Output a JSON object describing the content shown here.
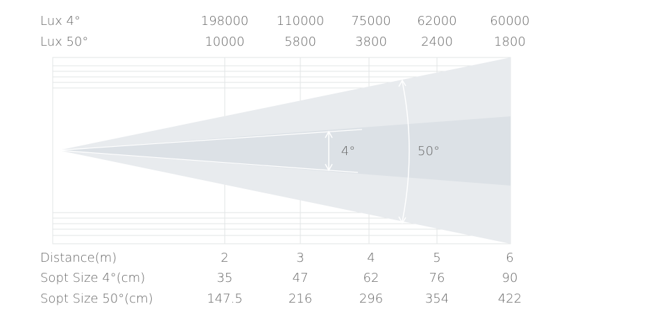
{
  "top_rows": [
    {
      "label": "Lux 4°",
      "values": [
        198000,
        110000,
        75000,
        62000,
        60000
      ]
    },
    {
      "label": "Lux 50°",
      "values": [
        10000,
        5800,
        3800,
        2400,
        1800
      ]
    }
  ],
  "beam_labels": [
    "4°",
    "50°"
  ],
  "bottom_rows": [
    {
      "label": "Distance(m)",
      "values": [
        2,
        3,
        4,
        5,
        6
      ]
    },
    {
      "label": "Sopt Size 4°(cm)",
      "values": [
        35,
        47,
        62,
        76,
        90
      ]
    },
    {
      "label": "Sopt Size 50°(cm)",
      "values": [
        147.5,
        216,
        296,
        354,
        422
      ]
    }
  ]
}
